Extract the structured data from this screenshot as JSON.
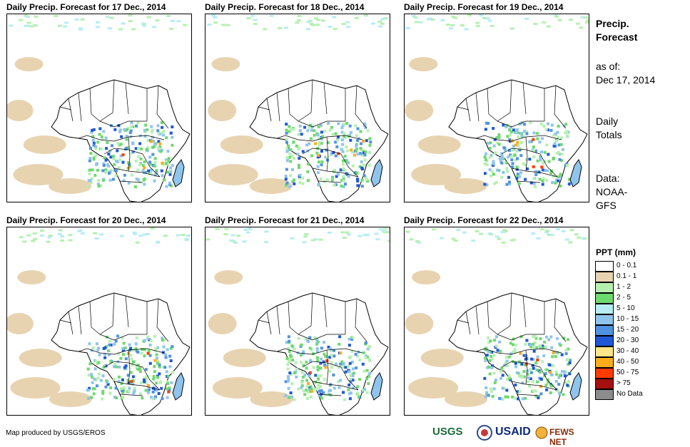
{
  "panels": [
    {
      "title": "Daily Precip. Forecast for 17 Dec., 2014"
    },
    {
      "title": "Daily Precip. Forecast for 18 Dec., 2014"
    },
    {
      "title": "Daily Precip. Forecast for 19 Dec., 2014"
    },
    {
      "title": "Daily Precip. Forecast for 20 Dec., 2014"
    },
    {
      "title": "Daily Precip. Forecast for 21 Dec., 2014"
    },
    {
      "title": "Daily Precip. Forecast for 22 Dec., 2014"
    }
  ],
  "sidebar": {
    "heading1": "Precip.",
    "heading2": "Forecast",
    "asof_label": "as of:",
    "asof_date": "Dec 17, 2014",
    "totals1": "Daily",
    "totals2": "Totals",
    "data_label": "Data:",
    "data_src1": "NOAA-",
    "data_src2": "GFS"
  },
  "legend": {
    "title": "PPT (mm)",
    "items": [
      {
        "label": "0 - 0.1",
        "color": "#ffffff"
      },
      {
        "label": "0.1 - 1",
        "color": "#e8d3b1"
      },
      {
        "label": "1 - 2",
        "color": "#b6f0b0"
      },
      {
        "label": "2 - 5",
        "color": "#6ed96e"
      },
      {
        "label": "5 - 10",
        "color": "#b7ecf4"
      },
      {
        "label": "10 - 15",
        "color": "#8fc4ec"
      },
      {
        "label": "15 - 20",
        "color": "#4f93e0"
      },
      {
        "label": "20 - 30",
        "color": "#1f57d6"
      },
      {
        "label": "30 - 40",
        "color": "#ffe58a"
      },
      {
        "label": "40 - 50",
        "color": "#ffab1a"
      },
      {
        "label": "50 - 75",
        "color": "#ff3c00"
      },
      {
        "label": "> 75",
        "color": "#a40f0f"
      },
      {
        "label": "No Data",
        "color": "#8c8c8c"
      }
    ]
  },
  "footer": {
    "credit": "Map produced by USGS/EROS",
    "logo_usgs": "USGS",
    "logo_usaid": "USAID",
    "logo_fews": "FEWS NET"
  }
}
